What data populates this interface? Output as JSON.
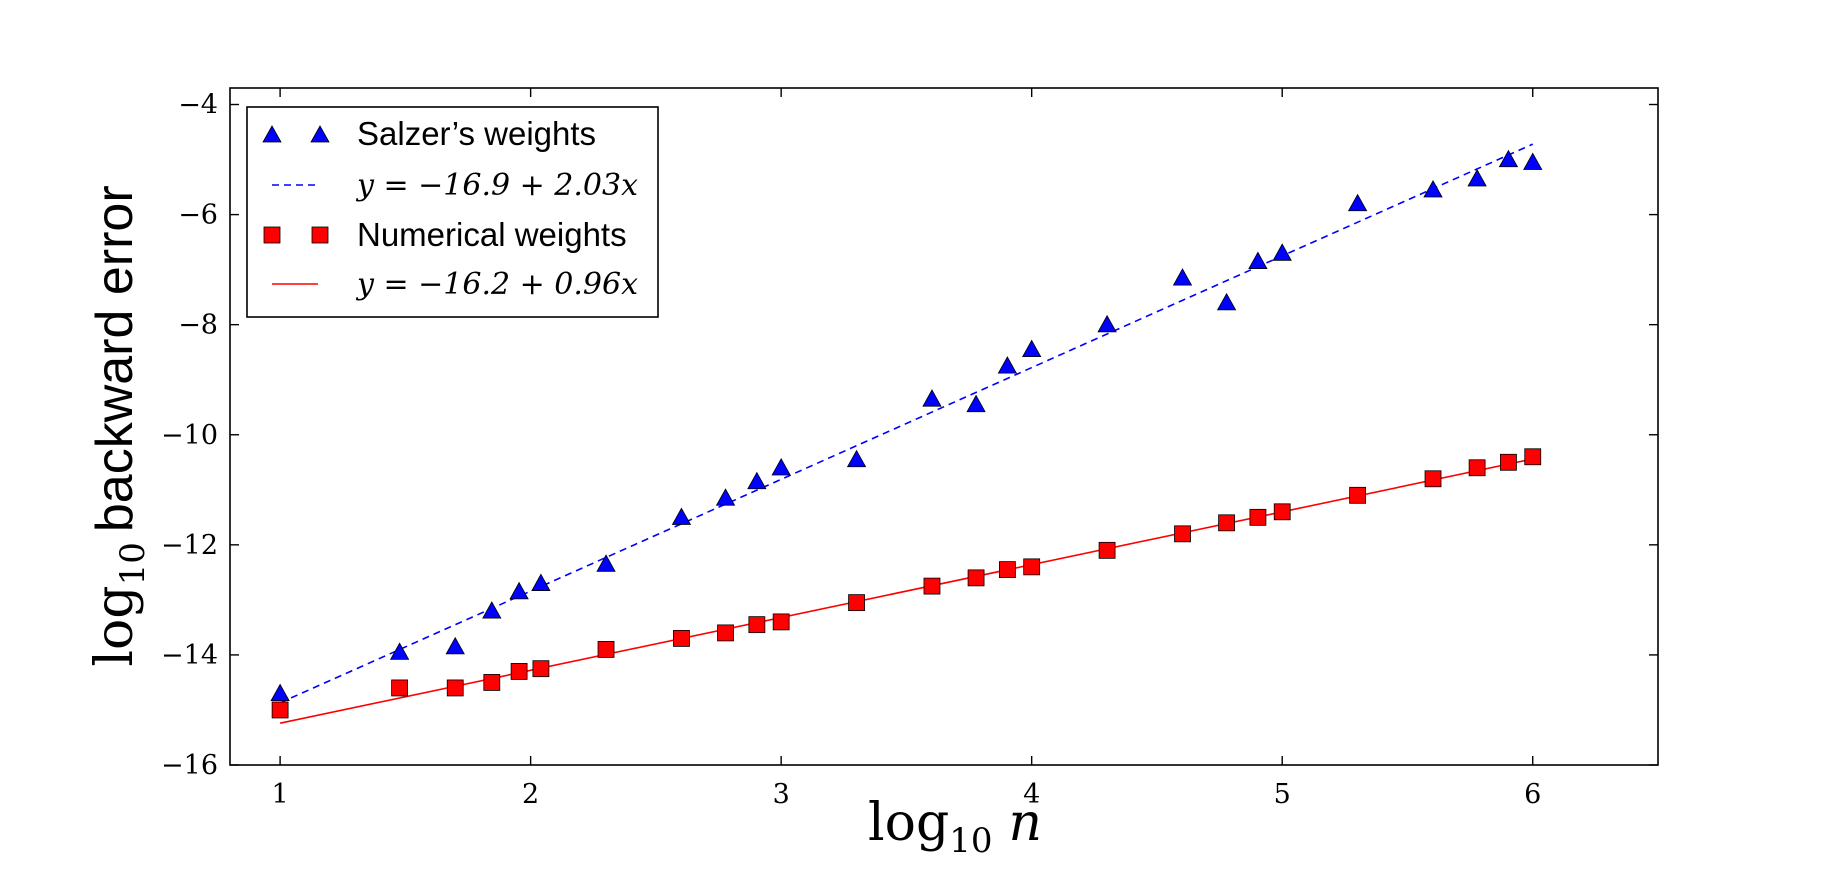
{
  "chart_data": {
    "type": "scatter",
    "xlabel": "log10 n",
    "ylabel": "log10 backward error",
    "xlim": [
      0.8,
      6.5
    ],
    "ylim": [
      -16,
      -3.7
    ],
    "xticks": [
      1,
      2,
      3,
      4,
      5,
      6
    ],
    "yticks": [
      -4,
      -6,
      -8,
      -10,
      -12,
      -14,
      -16
    ],
    "xtick_labels": [
      "1",
      "2",
      "3",
      "4",
      "5",
      "6"
    ],
    "ytick_labels": [
      "−4",
      "−6",
      "−8",
      "−10",
      "−12",
      "−14",
      "−16"
    ],
    "grid": false,
    "legend_position": "top-left",
    "series": [
      {
        "name": "Salzer’s weights",
        "kind": "markers",
        "marker": "triangle",
        "color": "#0000ff",
        "x": [
          1.0,
          1.477,
          1.699,
          1.845,
          1.954,
          2.041,
          2.301,
          2.602,
          2.778,
          2.903,
          3.0,
          3.301,
          3.602,
          3.778,
          3.903,
          4.0,
          4.301,
          4.602,
          4.778,
          4.903,
          5.0,
          5.301,
          5.602,
          5.778,
          5.903,
          6.0
        ],
        "y": [
          -14.7,
          -13.95,
          -13.85,
          -13.2,
          -12.85,
          -12.7,
          -12.35,
          -11.5,
          -11.15,
          -10.85,
          -10.6,
          -10.45,
          -9.35,
          -9.45,
          -8.75,
          -8.45,
          -8.0,
          -7.15,
          -7.6,
          -6.85,
          -6.7,
          -5.8,
          -5.55,
          -5.35,
          -5.0,
          -5.05
        ]
      },
      {
        "name": "y = −16.9 + 2.03x",
        "kind": "fit-line",
        "dash": true,
        "color": "#0000ff",
        "intercept": -16.9,
        "slope": 2.03,
        "x_range": [
          1,
          6
        ]
      },
      {
        "name": "Numerical weights",
        "kind": "markers",
        "marker": "square",
        "color": "#ff0000",
        "x": [
          1.0,
          1.477,
          1.699,
          1.845,
          1.954,
          2.041,
          2.301,
          2.602,
          2.778,
          2.903,
          3.0,
          3.301,
          3.602,
          3.778,
          3.903,
          4.0,
          4.301,
          4.602,
          4.778,
          4.903,
          5.0,
          5.301,
          5.602,
          5.778,
          5.903,
          6.0
        ],
        "y": [
          -15.0,
          -14.6,
          -14.6,
          -14.5,
          -14.3,
          -14.25,
          -13.9,
          -13.7,
          -13.6,
          -13.45,
          -13.4,
          -13.05,
          -12.75,
          -12.6,
          -12.45,
          -12.4,
          -12.1,
          -11.8,
          -11.6,
          -11.5,
          -11.4,
          -11.1,
          -10.8,
          -10.6,
          -10.5,
          -10.4
        ]
      },
      {
        "name": "y = −16.2 + 0.96x",
        "kind": "fit-line",
        "dash": false,
        "color": "#ff0000",
        "intercept": -16.2,
        "slope": 0.96,
        "x_range": [
          1,
          6
        ]
      }
    ],
    "legend": [
      {
        "label": "Salzer’s weights",
        "style": "sans"
      },
      {
        "label": "y = −16.9 + 2.03x",
        "style": "math"
      },
      {
        "label": "Numerical weights",
        "style": "sans"
      },
      {
        "label": "y = −16.2 + 0.96x",
        "style": "math"
      }
    ],
    "axis_labels": {
      "x_math": "log",
      "x_sub": "10",
      "x_var": "n",
      "y_math": "log",
      "y_sub": "10",
      "y_text": "backward error"
    }
  }
}
